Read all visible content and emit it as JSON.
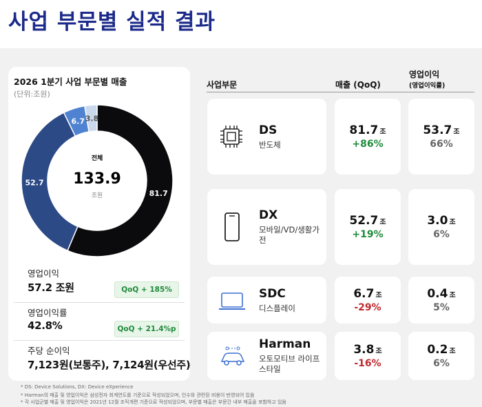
{
  "title": "사업 부문별 실적 결과",
  "chart_data": {
    "type": "pie",
    "title": "2026 1분기 사업 부문별 매출",
    "subtitle": "(단위:조원)",
    "center_label": "전체",
    "center_value": 133.9,
    "center_unit": "조원",
    "values": [
      81.7,
      52.7,
      6.7,
      3.8
    ],
    "colors": [
      "#0b0b0d",
      "#2c4a86",
      "#4f82d1",
      "#c9d8ec"
    ],
    "label_colors": [
      "#ffffff",
      "#ffffff",
      "#ffffff",
      "#555555"
    ]
  },
  "metrics": [
    {
      "label": "영업이익",
      "value": "57.2 조원",
      "badge": "QoQ + 185%"
    },
    {
      "label": "영업이익률",
      "value": "42.8%",
      "badge": "QoQ + 21.4%p"
    },
    {
      "label": "주당 순이익",
      "value": "7,123원(보통주), 7,124원(우선주)"
    }
  ],
  "table": {
    "headers": [
      "사업부문",
      "매출 (QoQ)",
      "영업이익"
    ],
    "header_note": "(영업이익률)",
    "unit": "조",
    "rows": [
      {
        "name": "DS",
        "sub": "반도체",
        "revenue": "81.7",
        "change": "+86%",
        "change_color": "#1f8a3b",
        "profit": "53.7",
        "margin": "66%"
      },
      {
        "name": "DX",
        "sub": "모바일/VD/생활가전",
        "revenue": "52.7",
        "change": "+19%",
        "change_color": "#1f8a3b",
        "profit": "3.0",
        "margin": "6%"
      },
      {
        "name": "SDC",
        "sub": "디스플레이",
        "revenue": "6.7",
        "change": "-29%",
        "change_color": "#c0282d",
        "profit": "0.4",
        "margin": "5%"
      },
      {
        "name": "Harman",
        "sub": "오토모티브 라이프스타일",
        "revenue": "3.8",
        "change": "-16%",
        "change_color": "#c0282d",
        "profit": "0.2",
        "margin": "6%"
      }
    ]
  },
  "footnotes": [
    "* DS: Device Solutions, DX: Device eXperience",
    "* Harman의 매출 및 영업이익은 삼성전자 회계연도를 기준으로 작성되었으며, 인수와 관련된 비용이 반영되어 있음",
    "* 각 사업군별 매출 및 영업이익은 2021년 12월 조직개편 기준으로 작성되었으며, 부문별 매출은 부문간 내부 매출을 포함하고 있음"
  ]
}
